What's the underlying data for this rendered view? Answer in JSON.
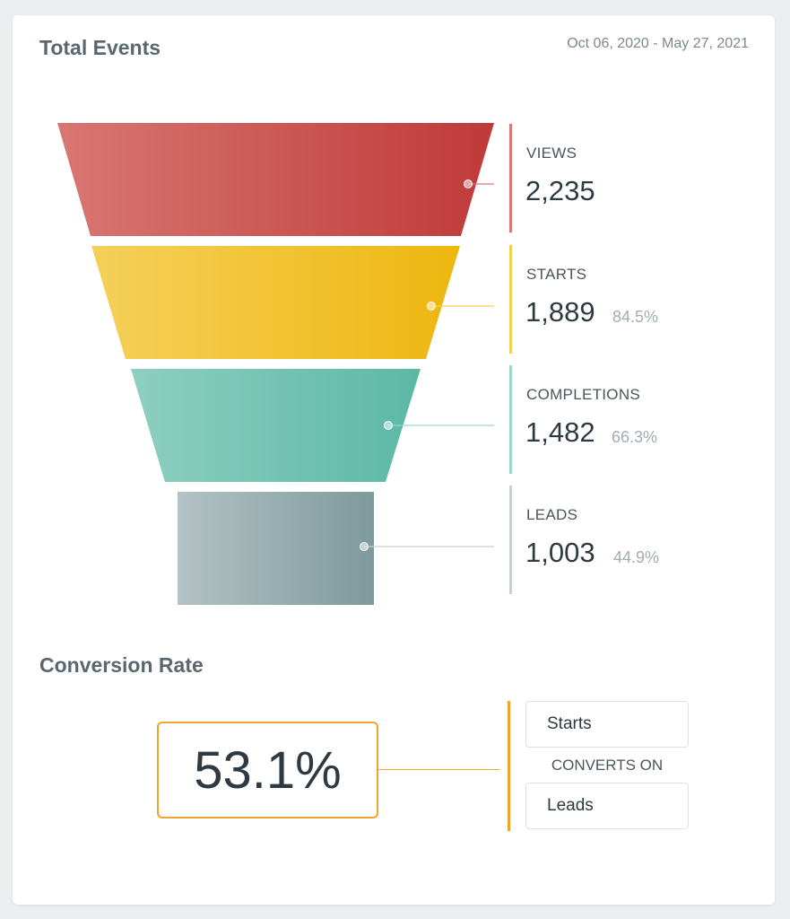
{
  "header": {
    "title": "Total Events",
    "date_range": "Oct 06, 2020 - May 27, 2021"
  },
  "chart_data": {
    "type": "funnel",
    "title": "Total Events",
    "stages": [
      {
        "label": "VIEWS",
        "value": 2235,
        "display": "2,235",
        "pct": "",
        "color_start": "#d87773",
        "color_end": "#bf3a39",
        "line_color": "#d87773"
      },
      {
        "label": "STARTS",
        "value": 1889,
        "display": "1,889",
        "pct": "84.5%",
        "color_start": "#f5d05a",
        "color_end": "#eeb70f",
        "line_color": "#f4cf51"
      },
      {
        "label": "COMPLETIONS",
        "value": 1482,
        "display": "1,482",
        "pct": "66.3%",
        "color_start": "#8ecfc0",
        "color_end": "#5bb8a5",
        "line_color": "#9cd6c8"
      },
      {
        "label": "LEADS",
        "value": 1003,
        "display": "1,003",
        "pct": "44.9%",
        "color_start": "#b3c2c4",
        "color_end": "#7e9a9c",
        "line_color": "#c7d1d3"
      }
    ]
  },
  "conversion": {
    "title": "Conversion Rate",
    "rate": "53.1%",
    "from_label": "Starts",
    "middle_label": "CONVERTS ON",
    "to_label": "Leads",
    "accent": "#f2a32c"
  }
}
